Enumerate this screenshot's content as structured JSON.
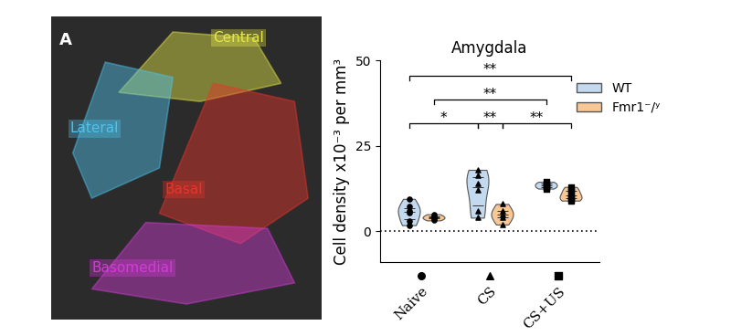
{
  "image_panel": {
    "label": "A",
    "regions": [
      {
        "name": "Central",
        "color": "#e6e84a"
      },
      {
        "name": "Lateral",
        "color": "#4fc3ec"
      },
      {
        "name": "Basal",
        "color": "#e8342a"
      },
      {
        "name": "Basomedial",
        "color": "#d23cd6"
      }
    ]
  },
  "chart_data": {
    "type": "violin",
    "title": "Amygdala",
    "y_label": "Cell density x10⁻³ per mm³",
    "categories": [
      "Naive",
      "CS",
      "CS+US"
    ],
    "category_markers": [
      "o",
      "^",
      "s"
    ],
    "ylim": [
      -9,
      50
    ],
    "yticks": [
      0,
      25,
      50
    ],
    "baseline": 0,
    "legend": "upper right",
    "series": [
      {
        "name": "WT",
        "color": "#c3d9f0",
        "values": [
          [
            9.5,
            7.2,
            6.0,
            5.5,
            3.0,
            1.8
          ],
          [
            18,
            16.5,
            14,
            12,
            6,
            4
          ],
          [
            14.5,
            14,
            13.5,
            13,
            12.5
          ]
        ]
      },
      {
        "name": "Fmr1⁻/ʸ",
        "color": "#f8c796",
        "values": [
          [
            5.0,
            4.5,
            4.0,
            3.8,
            3.2
          ],
          [
            8,
            6,
            5,
            4,
            2
          ],
          [
            13,
            12,
            11,
            10,
            9.5,
            9
          ]
        ]
      }
    ],
    "comparisons": [
      {
        "a": [
          "Naive",
          "WT"
        ],
        "b": [
          "CS",
          "WT"
        ],
        "label": "*"
      },
      {
        "a": [
          "CS",
          "WT"
        ],
        "b": [
          "CS",
          "Fmr1⁻/ʸ"
        ],
        "label": "**"
      },
      {
        "a": [
          "CS",
          "Fmr1⁻/ʸ"
        ],
        "b": [
          "CS+US",
          "Fmr1⁻/ʸ"
        ],
        "label": "**"
      },
      {
        "a": [
          "Naive",
          "Fmr1⁻/ʸ"
        ],
        "b": [
          "CS+US",
          "WT"
        ],
        "label": "**"
      },
      {
        "a": [
          "Naive",
          "WT"
        ],
        "b": [
          "CS+US",
          "Fmr1⁻/ʸ"
        ],
        "label": "**"
      }
    ]
  }
}
